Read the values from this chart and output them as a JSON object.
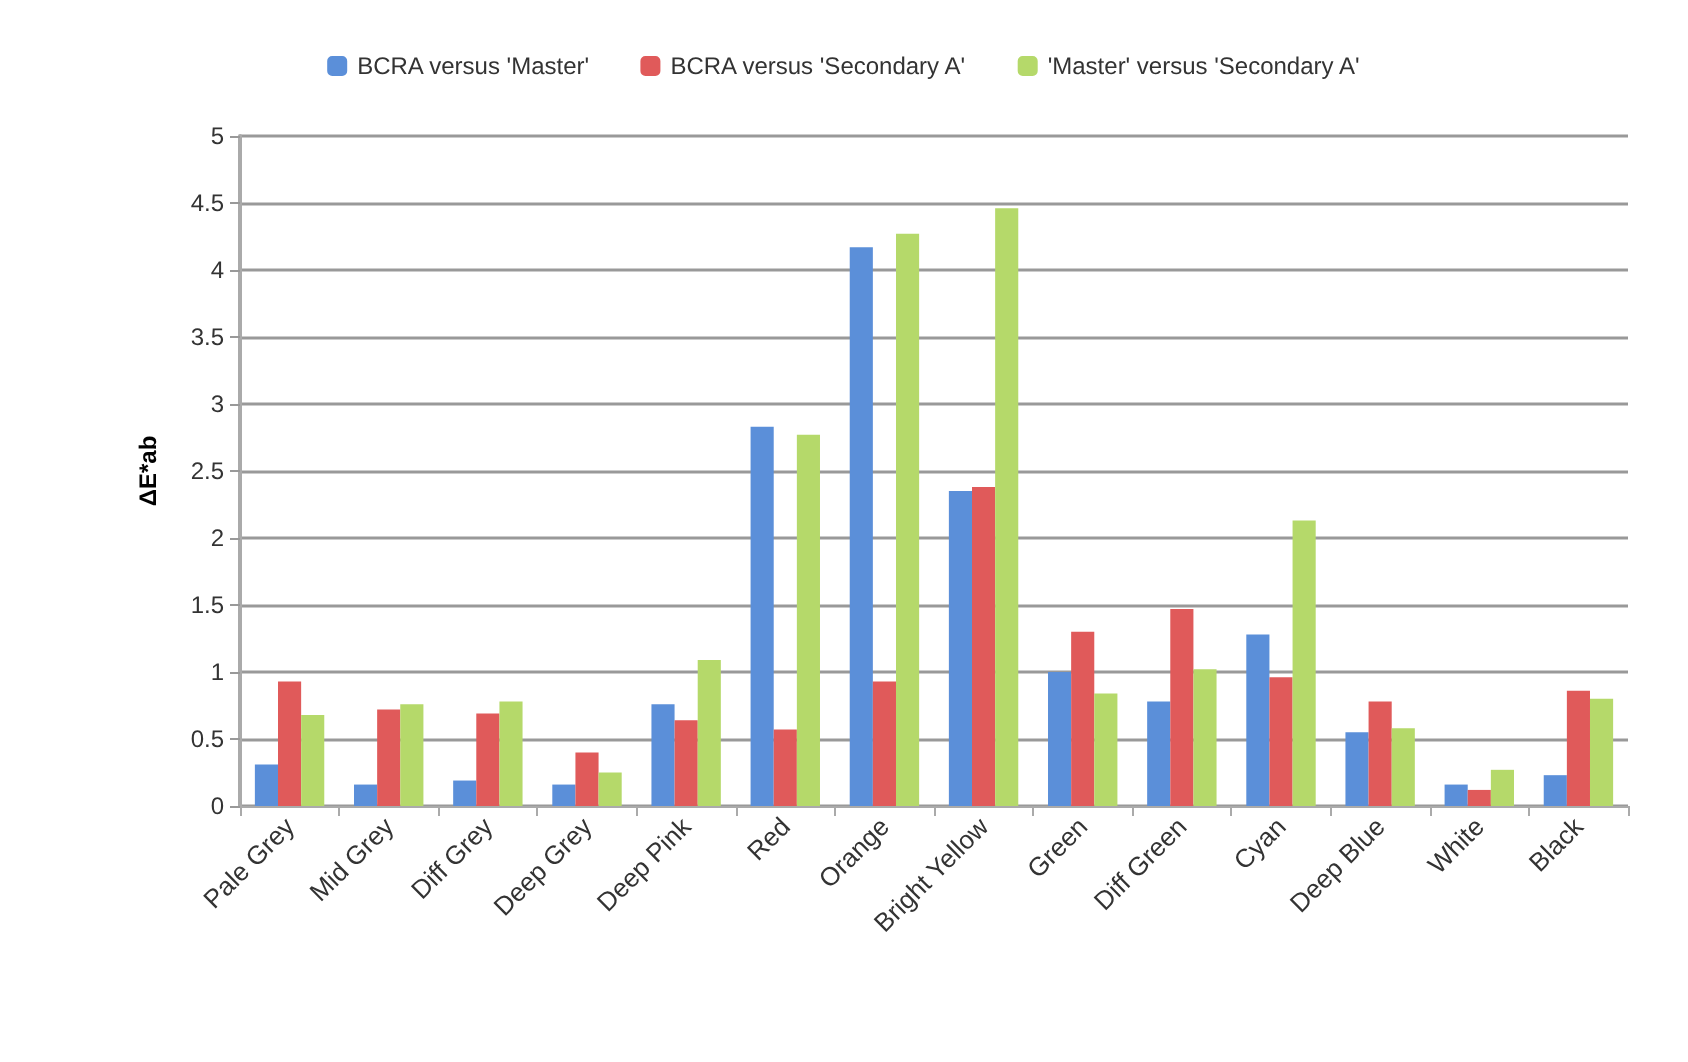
{
  "chart_data": {
    "type": "bar",
    "ylabel": "ΔE*ab",
    "categories": [
      "Pale Grey",
      "Mid Grey",
      "Diff Grey",
      "Deep Grey",
      "Deep Pink",
      "Red",
      "Orange",
      "Bright Yellow",
      "Green",
      "Diff Green",
      "Cyan",
      "Deep Blue",
      "White",
      "Black"
    ],
    "series": [
      {
        "name": "BCRA versus 'Master'",
        "color": "#5b8fd9",
        "values": [
          0.31,
          0.16,
          0.19,
          0.16,
          0.76,
          2.83,
          4.17,
          2.35,
          1.0,
          0.78,
          1.28,
          0.55,
          0.16,
          0.23
        ]
      },
      {
        "name": "BCRA versus 'Secondary A'",
        "color": "#e05a5a",
        "values": [
          0.93,
          0.72,
          0.69,
          0.4,
          0.64,
          0.57,
          0.93,
          2.38,
          1.3,
          1.47,
          0.96,
          0.78,
          0.12,
          0.86
        ]
      },
      {
        "name": "'Master' versus 'Secondary A'",
        "color": "#b5d96a",
        "values": [
          0.68,
          0.76,
          0.78,
          0.25,
          1.09,
          2.77,
          4.27,
          4.46,
          0.84,
          1.02,
          2.13,
          0.58,
          0.27,
          0.8
        ]
      }
    ],
    "ylim": [
      0,
      5
    ],
    "yticks": [
      0,
      0.5,
      1,
      1.5,
      2,
      2.5,
      3,
      3.5,
      4,
      4.5,
      5
    ],
    "grid": "y",
    "legend": "top"
  }
}
